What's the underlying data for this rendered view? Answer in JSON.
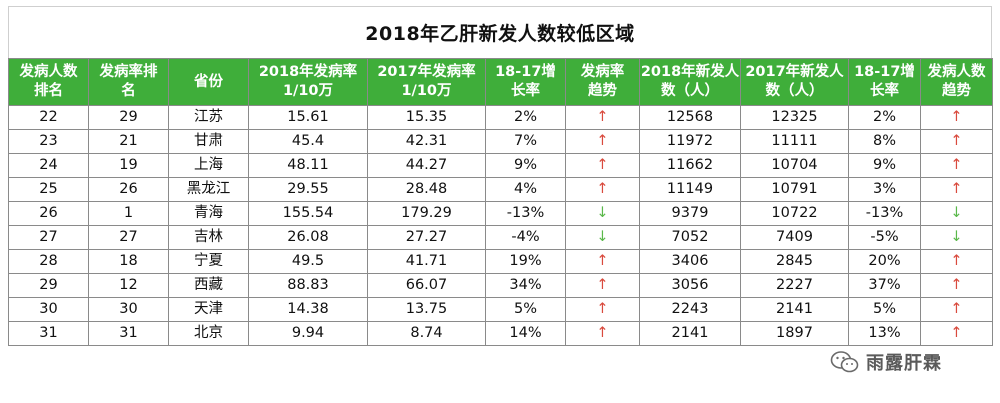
{
  "title": "2018年乙肝新发人数较低区域",
  "headers": [
    [
      "发病人数",
      "排名"
    ],
    [
      "发病率排",
      "名"
    ],
    [
      "省份"
    ],
    [
      "2018年发病率",
      "1/10万"
    ],
    [
      "2017年发病率",
      "1/10万"
    ],
    [
      "18-17增",
      "长率"
    ],
    [
      "发病率",
      "趋势"
    ],
    [
      "2018年新发人",
      "数（人）"
    ],
    [
      "2017年新发人",
      "数（人）"
    ],
    [
      "18-17增",
      "长率"
    ],
    [
      "发病人数",
      "趋势"
    ]
  ],
  "rows": [
    {
      "rank": "22",
      "rate_rank": "29",
      "province": "江苏",
      "rate_2018": "15.61",
      "rate_2017": "15.35",
      "rate_growth": "2%",
      "rate_trend": "↑",
      "rate_trend_dir": "up",
      "cases_2018": "12568",
      "cases_2017": "12325",
      "cases_growth": "2%",
      "cases_trend": "↑",
      "cases_trend_dir": "up"
    },
    {
      "rank": "23",
      "rate_rank": "21",
      "province": "甘肃",
      "rate_2018": "45.4",
      "rate_2017": "42.31",
      "rate_growth": "7%",
      "rate_trend": "↑",
      "rate_trend_dir": "up",
      "cases_2018": "11972",
      "cases_2017": "11111",
      "cases_growth": "8%",
      "cases_trend": "↑",
      "cases_trend_dir": "up"
    },
    {
      "rank": "24",
      "rate_rank": "19",
      "province": "上海",
      "rate_2018": "48.11",
      "rate_2017": "44.27",
      "rate_growth": "9%",
      "rate_trend": "↑",
      "rate_trend_dir": "up",
      "cases_2018": "11662",
      "cases_2017": "10704",
      "cases_growth": "9%",
      "cases_trend": "↑",
      "cases_trend_dir": "up"
    },
    {
      "rank": "25",
      "rate_rank": "26",
      "province": "黑龙江",
      "rate_2018": "29.55",
      "rate_2017": "28.48",
      "rate_growth": "4%",
      "rate_trend": "↑",
      "rate_trend_dir": "up",
      "cases_2018": "11149",
      "cases_2017": "10791",
      "cases_growth": "3%",
      "cases_trend": "↑",
      "cases_trend_dir": "up"
    },
    {
      "rank": "26",
      "rate_rank": "1",
      "province": "青海",
      "rate_2018": "155.54",
      "rate_2017": "179.29",
      "rate_growth": "-13%",
      "rate_trend": "↓",
      "rate_trend_dir": "down",
      "cases_2018": "9379",
      "cases_2017": "10722",
      "cases_growth": "-13%",
      "cases_trend": "↓",
      "cases_trend_dir": "down"
    },
    {
      "rank": "27",
      "rate_rank": "27",
      "province": "吉林",
      "rate_2018": "26.08",
      "rate_2017": "27.27",
      "rate_growth": "-4%",
      "rate_trend": "↓",
      "rate_trend_dir": "down",
      "cases_2018": "7052",
      "cases_2017": "7409",
      "cases_growth": "-5%",
      "cases_trend": "↓",
      "cases_trend_dir": "down"
    },
    {
      "rank": "28",
      "rate_rank": "18",
      "province": "宁夏",
      "rate_2018": "49.5",
      "rate_2017": "41.71",
      "rate_growth": "19%",
      "rate_trend": "↑",
      "rate_trend_dir": "up",
      "cases_2018": "3406",
      "cases_2017": "2845",
      "cases_growth": "20%",
      "cases_trend": "↑",
      "cases_trend_dir": "up"
    },
    {
      "rank": "29",
      "rate_rank": "12",
      "province": "西藏",
      "rate_2018": "88.83",
      "rate_2017": "66.07",
      "rate_growth": "34%",
      "rate_trend": "↑",
      "rate_trend_dir": "up",
      "cases_2018": "3056",
      "cases_2017": "2227",
      "cases_growth": "37%",
      "cases_trend": "↑",
      "cases_trend_dir": "up"
    },
    {
      "rank": "30",
      "rate_rank": "30",
      "province": "天津",
      "rate_2018": "14.38",
      "rate_2017": "13.75",
      "rate_growth": "5%",
      "rate_trend": "↑",
      "rate_trend_dir": "up",
      "cases_2018": "2243",
      "cases_2017": "2141",
      "cases_growth": "5%",
      "cases_trend": "↑",
      "cases_trend_dir": "up"
    },
    {
      "rank": "31",
      "rate_rank": "31",
      "province": "北京",
      "rate_2018": "9.94",
      "rate_2017": "8.74",
      "rate_growth": "14%",
      "rate_trend": "↑",
      "rate_trend_dir": "up",
      "cases_2018": "2141",
      "cases_2017": "1897",
      "cases_growth": "13%",
      "cases_trend": "↑",
      "cases_trend_dir": "up"
    }
  ],
  "watermark": {
    "text": "雨露肝霖",
    "icon": "wechat-icon"
  },
  "colors": {
    "header_bg": "#3fae3a",
    "header_text": "#ffffff",
    "up_arrow": "#d94a3d",
    "down_arrow": "#5ab84a",
    "border": "#8a8a8a"
  }
}
